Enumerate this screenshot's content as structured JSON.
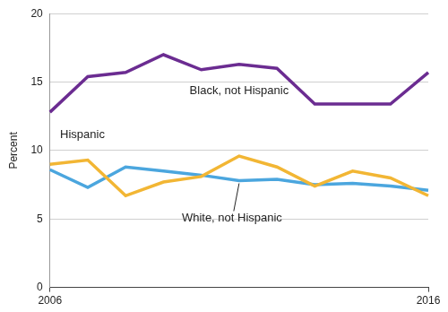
{
  "chart_data": {
    "type": "line",
    "y_label": "Percent",
    "categories": [
      "2006",
      null,
      null,
      null,
      null,
      null,
      null,
      null,
      null,
      null,
      "2016"
    ],
    "series": [
      {
        "name": "Black, not Hispanic",
        "color": "#6b2c91",
        "values": [
          12.8,
          15.4,
          15.7,
          17.0,
          15.9,
          16.3,
          16.0,
          13.4,
          13.4,
          13.4,
          15.7
        ]
      },
      {
        "name": "Hispanic",
        "color": "#f2b634",
        "values": [
          9.0,
          9.3,
          6.7,
          7.7,
          8.1,
          9.6,
          8.8,
          7.4,
          8.5,
          8.0,
          6.7
        ]
      },
      {
        "name": "White, not Hispanic",
        "color": "#4ba6de",
        "values": [
          8.6,
          7.3,
          8.8,
          8.5,
          8.2,
          7.8,
          7.9,
          7.5,
          7.6,
          7.4,
          7.1
        ]
      }
    ],
    "ylim": [
      0,
      20
    ],
    "yticks": [
      0,
      5,
      10,
      15,
      20
    ],
    "grid": true
  }
}
